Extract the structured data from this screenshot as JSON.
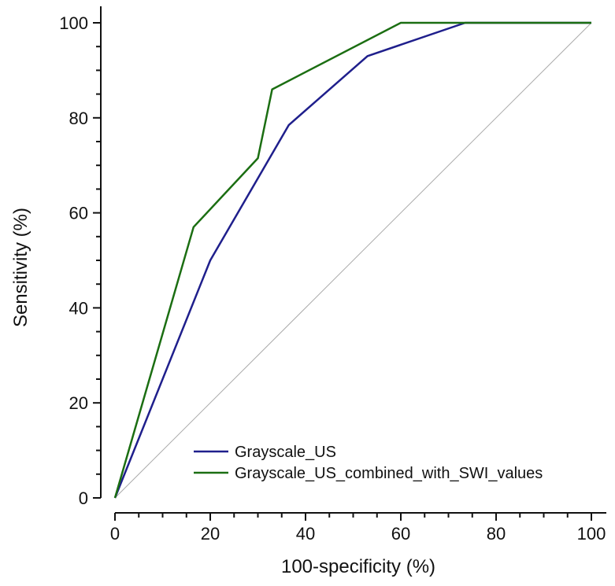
{
  "chart_data": {
    "type": "line",
    "title": "",
    "xlabel": "100-specificity (%)",
    "ylabel": "Sensitivity (%)",
    "xlim": [
      0,
      100
    ],
    "ylim": [
      0,
      100
    ],
    "x_major_ticks": [
      0,
      20,
      40,
      60,
      80,
      100
    ],
    "x_minor_step": 5,
    "y_major_ticks": [
      0,
      20,
      40,
      60,
      80,
      100
    ],
    "y_minor_step": 5,
    "x_tick_labels": [
      "0",
      "20",
      "40",
      "60",
      "80",
      "100"
    ],
    "y_tick_labels": [
      "0",
      "20",
      "40",
      "60",
      "80",
      "100"
    ],
    "legend_position": "bottom-right",
    "reference_line": {
      "x": [
        0,
        100
      ],
      "y": [
        0,
        100
      ],
      "color": "#aaaaaa"
    },
    "series": [
      {
        "name": "Grayscale_US",
        "color": "#1f1f8c",
        "x": [
          0,
          20,
          36.5,
          53,
          73.5,
          100
        ],
        "y": [
          0,
          50,
          78.5,
          93,
          100,
          100
        ]
      },
      {
        "name": "Grayscale_US_combined_with_SWI_values",
        "color": "#1b6e12",
        "x": [
          0,
          16.5,
          30,
          33,
          60,
          100
        ],
        "y": [
          0,
          57,
          71.5,
          86,
          100,
          100
        ]
      }
    ]
  }
}
